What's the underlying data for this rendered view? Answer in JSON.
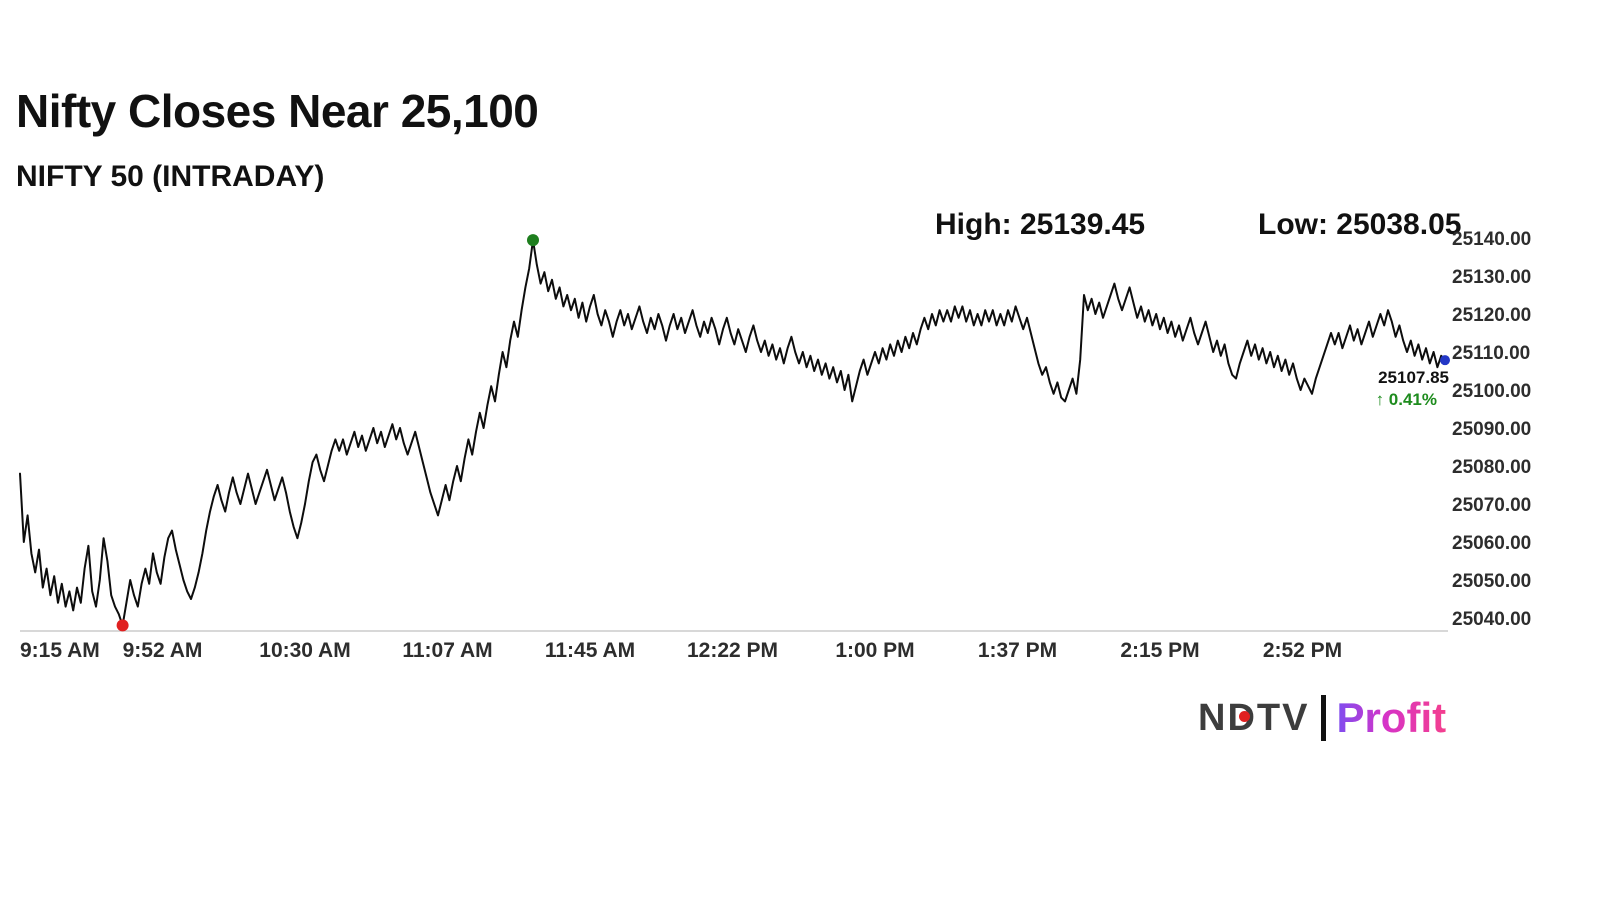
{
  "title": "Nifty Closes Near 25,100",
  "subtitle": "NIFTY 50 (INTRADAY)",
  "stats": {
    "high_label": "High: 25139.45",
    "low_label": "Low: 25038.05"
  },
  "last_trade": {
    "price": "25107.85",
    "change": "↑ 0.41%"
  },
  "branding": {
    "ndtv": "NDTV",
    "profit": "Profit"
  },
  "colors": {
    "line": "#0d0d0d",
    "axis": "#cccccc",
    "tick_text": "#2d2d2d",
    "high_dot": "#1e7e1e",
    "low_dot": "#e02020",
    "last_dot": "#2337c6",
    "change_green": "#1e8c1e",
    "ndtv_red": "#e02020"
  },
  "chart_data": {
    "type": "line",
    "title": "NIFTY 50 (INTRADAY)",
    "x_unit": "minutes since 9:15 AM",
    "xlim": [
      0,
      375
    ],
    "ylim": [
      25036,
      25142
    ],
    "grid": false,
    "legend": "none",
    "y_axis_side": "right",
    "high": 25139.45,
    "low": 25038.05,
    "close": 25107.85,
    "change_pct": 0.41,
    "y_ticks": [
      25040,
      25050,
      25060,
      25070,
      25080,
      25090,
      25100,
      25110,
      25120,
      25130,
      25140
    ],
    "x_ticks": [
      {
        "m": 0,
        "label": "9:15 AM"
      },
      {
        "m": 37.5,
        "label": "9:52 AM"
      },
      {
        "m": 75,
        "label": "10:30 AM"
      },
      {
        "m": 112.5,
        "label": "11:07 AM"
      },
      {
        "m": 150,
        "label": "11:45 AM"
      },
      {
        "m": 187.5,
        "label": "12:22 PM"
      },
      {
        "m": 225,
        "label": "1:00 PM"
      },
      {
        "m": 262.5,
        "label": "1:37 PM"
      },
      {
        "m": 300,
        "label": "2:15 PM"
      },
      {
        "m": 337.5,
        "label": "2:52 PM"
      }
    ],
    "points": [
      [
        0,
        25078
      ],
      [
        1,
        25060
      ],
      [
        2,
        25067
      ],
      [
        3,
        25057
      ],
      [
        4,
        25052
      ],
      [
        5,
        25058
      ],
      [
        6,
        25048
      ],
      [
        7,
        25053
      ],
      [
        8,
        25046
      ],
      [
        9,
        25051
      ],
      [
        10,
        25044
      ],
      [
        11,
        25049
      ],
      [
        12,
        25043
      ],
      [
        13,
        25047
      ],
      [
        14,
        25042
      ],
      [
        15,
        25048
      ],
      [
        16,
        25044
      ],
      [
        17,
        25053
      ],
      [
        18,
        25059
      ],
      [
        19,
        25047
      ],
      [
        20,
        25043
      ],
      [
        21,
        25050
      ],
      [
        22,
        25061
      ],
      [
        23,
        25055
      ],
      [
        24,
        25046
      ],
      [
        25,
        25043
      ],
      [
        26,
        25041
      ],
      [
        27,
        25038.05
      ],
      [
        28,
        25044
      ],
      [
        29,
        25050
      ],
      [
        30,
        25046
      ],
      [
        31,
        25043
      ],
      [
        32,
        25049
      ],
      [
        33,
        25053
      ],
      [
        34,
        25049
      ],
      [
        35,
        25057
      ],
      [
        36,
        25052
      ],
      [
        37,
        25049
      ],
      [
        38,
        25056
      ],
      [
        39,
        25061
      ],
      [
        40,
        25063
      ],
      [
        41,
        25058
      ],
      [
        42,
        25054
      ],
      [
        43,
        25050
      ],
      [
        44,
        25047
      ],
      [
        45,
        25045
      ],
      [
        46,
        25048
      ],
      [
        47,
        25052
      ],
      [
        48,
        25057
      ],
      [
        49,
        25063
      ],
      [
        50,
        25068
      ],
      [
        51,
        25072
      ],
      [
        52,
        25075
      ],
      [
        53,
        25071
      ],
      [
        54,
        25068
      ],
      [
        55,
        25073
      ],
      [
        56,
        25077
      ],
      [
        57,
        25073
      ],
      [
        58,
        25070
      ],
      [
        59,
        25074
      ],
      [
        60,
        25078
      ],
      [
        61,
        25074
      ],
      [
        62,
        25070
      ],
      [
        63,
        25073
      ],
      [
        64,
        25076
      ],
      [
        65,
        25079
      ],
      [
        66,
        25075
      ],
      [
        67,
        25071
      ],
      [
        68,
        25074
      ],
      [
        69,
        25077
      ],
      [
        70,
        25073
      ],
      [
        71,
        25068
      ],
      [
        72,
        25064
      ],
      [
        73,
        25061
      ],
      [
        74,
        25065
      ],
      [
        75,
        25070
      ],
      [
        76,
        25076
      ],
      [
        77,
        25081
      ],
      [
        78,
        25083
      ],
      [
        79,
        25079
      ],
      [
        80,
        25076
      ],
      [
        81,
        25080
      ],
      [
        82,
        25084
      ],
      [
        83,
        25087
      ],
      [
        84,
        25084
      ],
      [
        85,
        25087
      ],
      [
        86,
        25083
      ],
      [
        87,
        25086
      ],
      [
        88,
        25089
      ],
      [
        89,
        25085
      ],
      [
        90,
        25088
      ],
      [
        91,
        25084
      ],
      [
        92,
        25087
      ],
      [
        93,
        25090
      ],
      [
        94,
        25086
      ],
      [
        95,
        25089
      ],
      [
        96,
        25085
      ],
      [
        97,
        25088
      ],
      [
        98,
        25091
      ],
      [
        99,
        25087
      ],
      [
        100,
        25090
      ],
      [
        101,
        25086
      ],
      [
        102,
        25083
      ],
      [
        103,
        25086
      ],
      [
        104,
        25089
      ],
      [
        105,
        25085
      ],
      [
        106,
        25081
      ],
      [
        107,
        25077
      ],
      [
        108,
        25073
      ],
      [
        109,
        25070
      ],
      [
        110,
        25067
      ],
      [
        111,
        25071
      ],
      [
        112,
        25075
      ],
      [
        113,
        25071
      ],
      [
        114,
        25076
      ],
      [
        115,
        25080
      ],
      [
        116,
        25076
      ],
      [
        117,
        25082
      ],
      [
        118,
        25087
      ],
      [
        119,
        25083
      ],
      [
        120,
        25089
      ],
      [
        121,
        25094
      ],
      [
        122,
        25090
      ],
      [
        123,
        25096
      ],
      [
        124,
        25101
      ],
      [
        125,
        25097
      ],
      [
        126,
        25104
      ],
      [
        127,
        25110
      ],
      [
        128,
        25106
      ],
      [
        129,
        25113
      ],
      [
        130,
        25118
      ],
      [
        131,
        25114
      ],
      [
        132,
        25121
      ],
      [
        133,
        25127
      ],
      [
        134,
        25132
      ],
      [
        135,
        25139.45
      ],
      [
        136,
        25133
      ],
      [
        137,
        25128
      ],
      [
        138,
        25131
      ],
      [
        139,
        25126
      ],
      [
        140,
        25129
      ],
      [
        141,
        25124
      ],
      [
        142,
        25127
      ],
      [
        143,
        25122
      ],
      [
        144,
        25125
      ],
      [
        145,
        25121
      ],
      [
        146,
        25124
      ],
      [
        147,
        25119
      ],
      [
        148,
        25123
      ],
      [
        149,
        25118
      ],
      [
        150,
        25122
      ],
      [
        151,
        25125
      ],
      [
        152,
        25120
      ],
      [
        153,
        25117
      ],
      [
        154,
        25121
      ],
      [
        155,
        25118
      ],
      [
        156,
        25114
      ],
      [
        157,
        25118
      ],
      [
        158,
        25121
      ],
      [
        159,
        25117
      ],
      [
        160,
        25120
      ],
      [
        161,
        25116
      ],
      [
        162,
        25119
      ],
      [
        163,
        25122
      ],
      [
        164,
        25118
      ],
      [
        165,
        25115
      ],
      [
        166,
        25119
      ],
      [
        167,
        25116
      ],
      [
        168,
        25120
      ],
      [
        169,
        25117
      ],
      [
        170,
        25113
      ],
      [
        171,
        25117
      ],
      [
        172,
        25120
      ],
      [
        173,
        25116
      ],
      [
        174,
        25119
      ],
      [
        175,
        25115
      ],
      [
        176,
        25118
      ],
      [
        177,
        25121
      ],
      [
        178,
        25117
      ],
      [
        179,
        25114
      ],
      [
        180,
        25118
      ],
      [
        181,
        25115
      ],
      [
        182,
        25119
      ],
      [
        183,
        25116
      ],
      [
        184,
        25112
      ],
      [
        185,
        25116
      ],
      [
        186,
        25119
      ],
      [
        187,
        25115
      ],
      [
        188,
        25112
      ],
      [
        189,
        25116
      ],
      [
        190,
        25113
      ],
      [
        191,
        25110
      ],
      [
        192,
        25114
      ],
      [
        193,
        25117
      ],
      [
        194,
        25113
      ],
      [
        195,
        25110
      ],
      [
        196,
        25113
      ],
      [
        197,
        25109
      ],
      [
        198,
        25112
      ],
      [
        199,
        25108
      ],
      [
        200,
        25111
      ],
      [
        201,
        25107
      ],
      [
        202,
        25111
      ],
      [
        203,
        25114
      ],
      [
        204,
        25110
      ],
      [
        205,
        25107
      ],
      [
        206,
        25110
      ],
      [
        207,
        25106
      ],
      [
        208,
        25109
      ],
      [
        209,
        25105
      ],
      [
        210,
        25108
      ],
      [
        211,
        25104
      ],
      [
        212,
        25107
      ],
      [
        213,
        25103
      ],
      [
        214,
        25106
      ],
      [
        215,
        25102
      ],
      [
        216,
        25105
      ],
      [
        217,
        25100
      ],
      [
        218,
        25104
      ],
      [
        219,
        25097
      ],
      [
        220,
        25101
      ],
      [
        221,
        25105
      ],
      [
        222,
        25108
      ],
      [
        223,
        25104
      ],
      [
        224,
        25107
      ],
      [
        225,
        25110
      ],
      [
        226,
        25107
      ],
      [
        227,
        25111
      ],
      [
        228,
        25108
      ],
      [
        229,
        25112
      ],
      [
        230,
        25109
      ],
      [
        231,
        25113
      ],
      [
        232,
        25110
      ],
      [
        233,
        25114
      ],
      [
        234,
        25111
      ],
      [
        235,
        25115
      ],
      [
        236,
        25112
      ],
      [
        237,
        25116
      ],
      [
        238,
        25119
      ],
      [
        239,
        25116
      ],
      [
        240,
        25120
      ],
      [
        241,
        25117
      ],
      [
        242,
        25121
      ],
      [
        243,
        25118
      ],
      [
        244,
        25121
      ],
      [
        245,
        25118
      ],
      [
        246,
        25122
      ],
      [
        247,
        25119
      ],
      [
        248,
        25122
      ],
      [
        249,
        25118
      ],
      [
        250,
        25121
      ],
      [
        251,
        25117
      ],
      [
        252,
        25120
      ],
      [
        253,
        25117
      ],
      [
        254,
        25121
      ],
      [
        255,
        25118
      ],
      [
        256,
        25121
      ],
      [
        257,
        25117
      ],
      [
        258,
        25120
      ],
      [
        259,
        25117
      ],
      [
        260,
        25121
      ],
      [
        261,
        25118
      ],
      [
        262,
        25122
      ],
      [
        263,
        25119
      ],
      [
        264,
        25116
      ],
      [
        265,
        25119
      ],
      [
        266,
        25115
      ],
      [
        267,
        25111
      ],
      [
        268,
        25107
      ],
      [
        269,
        25104
      ],
      [
        270,
        25106
      ],
      [
        271,
        25102
      ],
      [
        272,
        25099
      ],
      [
        273,
        25102
      ],
      [
        274,
        25098
      ],
      [
        275,
        25097
      ],
      [
        276,
        25100
      ],
      [
        277,
        25103
      ],
      [
        278,
        25099
      ],
      [
        279,
        25108
      ],
      [
        280,
        25125
      ],
      [
        281,
        25121
      ],
      [
        282,
        25124
      ],
      [
        283,
        25120
      ],
      [
        284,
        25123
      ],
      [
        285,
        25119
      ],
      [
        286,
        25122
      ],
      [
        287,
        25125
      ],
      [
        288,
        25128
      ],
      [
        289,
        25124
      ],
      [
        290,
        25121
      ],
      [
        291,
        25124
      ],
      [
        292,
        25127
      ],
      [
        293,
        25123
      ],
      [
        294,
        25119
      ],
      [
        295,
        25122
      ],
      [
        296,
        25118
      ],
      [
        297,
        25121
      ],
      [
        298,
        25117
      ],
      [
        299,
        25120
      ],
      [
        300,
        25116
      ],
      [
        301,
        25119
      ],
      [
        302,
        25115
      ],
      [
        303,
        25118
      ],
      [
        304,
        25114
      ],
      [
        305,
        25117
      ],
      [
        306,
        25113
      ],
      [
        307,
        25116
      ],
      [
        308,
        25119
      ],
      [
        309,
        25115
      ],
      [
        310,
        25112
      ],
      [
        311,
        25115
      ],
      [
        312,
        25118
      ],
      [
        313,
        25114
      ],
      [
        314,
        25110
      ],
      [
        315,
        25113
      ],
      [
        316,
        25109
      ],
      [
        317,
        25112
      ],
      [
        318,
        25107
      ],
      [
        319,
        25104
      ],
      [
        320,
        25103
      ],
      [
        321,
        25107
      ],
      [
        322,
        25110
      ],
      [
        323,
        25113
      ],
      [
        324,
        25109
      ],
      [
        325,
        25112
      ],
      [
        326,
        25108
      ],
      [
        327,
        25111
      ],
      [
        328,
        25107
      ],
      [
        329,
        25110
      ],
      [
        330,
        25106
      ],
      [
        331,
        25109
      ],
      [
        332,
        25105
      ],
      [
        333,
        25108
      ],
      [
        334,
        25104
      ],
      [
        335,
        25107
      ],
      [
        336,
        25103
      ],
      [
        337,
        25100
      ],
      [
        338,
        25103
      ],
      [
        339,
        25101
      ],
      [
        340,
        25099
      ],
      [
        341,
        25103
      ],
      [
        342,
        25106
      ],
      [
        343,
        25109
      ],
      [
        344,
        25112
      ],
      [
        345,
        25115
      ],
      [
        346,
        25112
      ],
      [
        347,
        25115
      ],
      [
        348,
        25111
      ],
      [
        349,
        25114
      ],
      [
        350,
        25117
      ],
      [
        351,
        25113
      ],
      [
        352,
        25116
      ],
      [
        353,
        25112
      ],
      [
        354,
        25115
      ],
      [
        355,
        25118
      ],
      [
        356,
        25114
      ],
      [
        357,
        25117
      ],
      [
        358,
        25120
      ],
      [
        359,
        25117
      ],
      [
        360,
        25121
      ],
      [
        361,
        25118
      ],
      [
        362,
        25114
      ],
      [
        363,
        25117
      ],
      [
        364,
        25113
      ],
      [
        365,
        25110
      ],
      [
        366,
        25113
      ],
      [
        367,
        25109
      ],
      [
        368,
        25112
      ],
      [
        369,
        25108
      ],
      [
        370,
        25111
      ],
      [
        371,
        25107
      ],
      [
        372,
        25110
      ],
      [
        373,
        25106
      ],
      [
        374,
        25109
      ],
      [
        375,
        25107.85
      ]
    ]
  }
}
